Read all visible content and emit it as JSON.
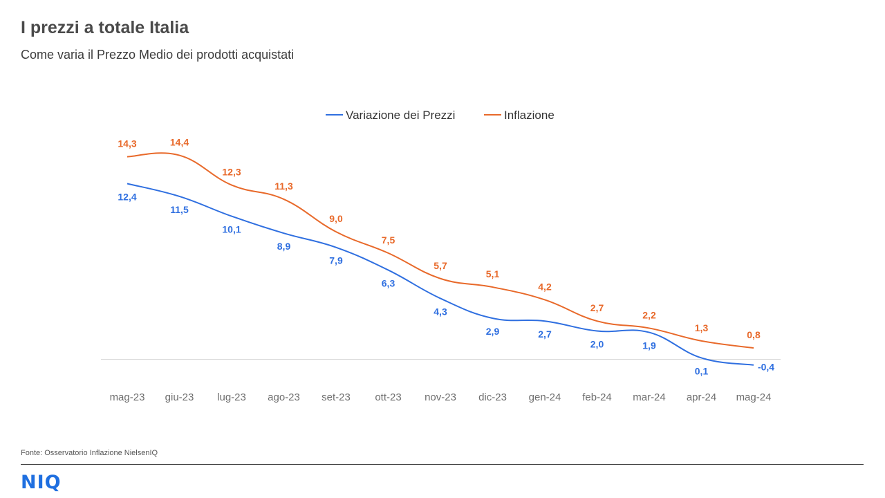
{
  "header": {
    "title": "I prezzi a totale Italia",
    "subtitle": "Come varia il Prezzo Medio dei prodotti acquistati"
  },
  "footer": {
    "source": "Fonte: Osservatorio Inflazione NielsenIQ",
    "logo_text": "NIQ"
  },
  "chart_data": {
    "type": "line",
    "categories": [
      "mag-23",
      "giu-23",
      "lug-23",
      "ago-23",
      "set-23",
      "ott-23",
      "nov-23",
      "dic-23",
      "gen-24",
      "feb-24",
      "mar-24",
      "apr-24",
      "mag-24"
    ],
    "series": [
      {
        "name": "Variazione dei Prezzi",
        "color": "#2f6fe0",
        "values": [
          12.4,
          11.5,
          10.1,
          8.9,
          7.9,
          6.3,
          4.3,
          2.9,
          2.7,
          2.0,
          1.9,
          0.1,
          -0.4
        ],
        "labels": [
          "12,4",
          "11,5",
          "10,1",
          "8,9",
          "7,9",
          "6,3",
          "4,3",
          "2,9",
          "2,7",
          "2,0",
          "1,9",
          "0,1",
          "-0,4"
        ],
        "label_position": "below"
      },
      {
        "name": "Inflazione",
        "color": "#e8692a",
        "values": [
          14.3,
          14.4,
          12.3,
          11.3,
          9.0,
          7.5,
          5.7,
          5.1,
          4.2,
          2.7,
          2.2,
          1.3,
          0.8
        ],
        "labels": [
          "14,3",
          "14,4",
          "12,3",
          "11,3",
          "9,0",
          "7,5",
          "5,7",
          "5,1",
          "4,2",
          "2,7",
          "2,2",
          "1,3",
          "0,8"
        ],
        "label_position": "above"
      }
    ],
    "ylim": [
      -1,
      15.5
    ],
    "baseline": 0,
    "grid": false,
    "legend": "top-center"
  }
}
